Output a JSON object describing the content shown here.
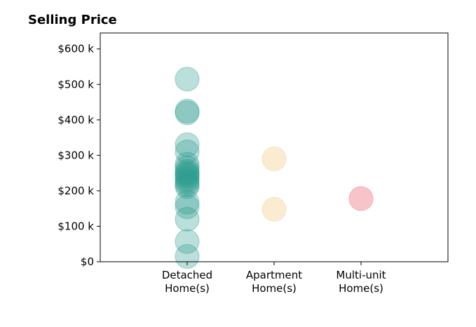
{
  "chart_data": {
    "type": "scatter",
    "title": "Selling Price",
    "xlabel": "",
    "ylabel": "",
    "categories": [
      [
        "Detached",
        "Home(s)"
      ],
      [
        "Apartment",
        "Home(s)"
      ],
      [
        "Multi-unit",
        "Home(s)"
      ]
    ],
    "xlim": [
      -1,
      3
    ],
    "ylim": [
      0,
      645000
    ],
    "yticks": [
      0,
      100000,
      200000,
      300000,
      400000,
      500000,
      600000
    ],
    "ytick_labels": [
      "$0",
      "$100 k",
      "$200 k",
      "$300 k",
      "$400 k",
      "$500 k",
      "$600 k"
    ],
    "grid": false,
    "series": [
      {
        "category": 0,
        "color": "#2a9d8f",
        "opacity": 0.32,
        "values": [
          515000,
          425000,
          420000,
          330000,
          310000,
          275000,
          265000,
          255000,
          250000,
          245000,
          240000,
          232000,
          225000,
          218000,
          212000,
          168000,
          155000,
          120000,
          57000,
          15000
        ]
      },
      {
        "category": 1,
        "color": "#f4d49a",
        "opacity": 0.45,
        "values": [
          290000,
          148000
        ]
      },
      {
        "category": 2,
        "color": "#f08a96",
        "opacity": 0.5,
        "values": [
          178000
        ]
      }
    ]
  }
}
